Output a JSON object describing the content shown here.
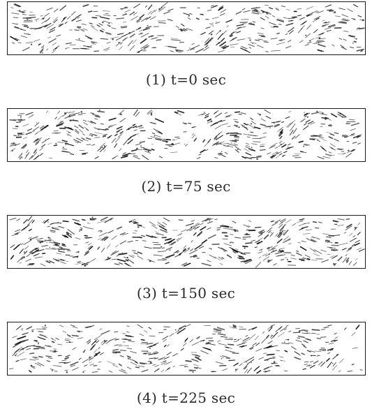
{
  "frames": [
    {
      "id": "1",
      "caption": "(1) t=0 sec",
      "time_sec": 0
    },
    {
      "id": "2",
      "caption": "(2) t=75 sec",
      "time_sec": 75
    },
    {
      "id": "3",
      "caption": "(3) t=150 sec",
      "time_sec": 150
    },
    {
      "id": "4",
      "caption": "(4) t=225 sec",
      "time_sec": 225
    }
  ],
  "colors": {
    "border": "#1a1a1a",
    "vectors": "#111111",
    "caption_text": "#2a2a2a",
    "background": "#ffffff"
  }
}
